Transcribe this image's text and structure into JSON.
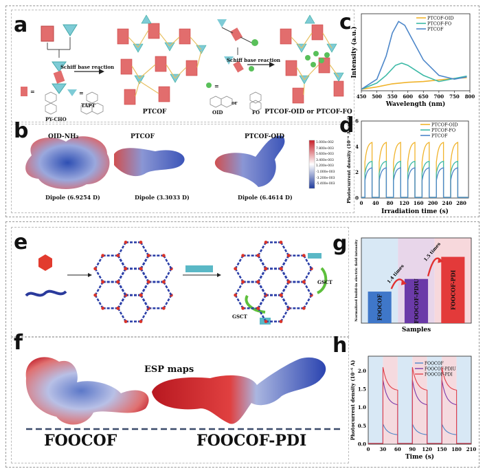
{
  "panels": {
    "a": "a",
    "b": "b",
    "c": "c",
    "d": "d",
    "e": "e",
    "f": "f",
    "g": "g",
    "h": "h"
  },
  "panel_a": {
    "schiff1": "Schiff base reaction",
    "schiff2": "Schiff base reaction",
    "py_cho": "PY-CHO",
    "tapt": "TAPT",
    "ptcof": "PTCOF",
    "oid": "OID",
    "or": "or",
    "fo": "FO",
    "result": "PTCOF-OID or PTCOF-FO"
  },
  "panel_b": {
    "t1": "OID-NH₂",
    "t2": "PTCOF",
    "t3": "PTCOF-OID",
    "d1": "Dipole (6.9254 D)",
    "d2": "Dipole (3.3033 D)",
    "d3": "Dipole (6.4614 D)",
    "scale": [
      "1.000e-002",
      "7.800e-003",
      "5.600e-003",
      "3.400e-003",
      "1.200e-003",
      "-1.000e-003",
      "-3.200e-003",
      "-5.400e-003",
      "-7.600e-003"
    ]
  },
  "panel_e": {
    "gsct1": "GSCT",
    "gsct2": "GSCT"
  },
  "panel_f": {
    "esp": "ESP maps",
    "left": "FOOCOF",
    "right": "FOOCOF-PDI"
  },
  "chart_data": [
    {
      "id": "c",
      "type": "line",
      "xlabel": "Wavelength (nm)",
      "ylabel": "Intensity (a.u.)",
      "xlim": [
        450,
        800
      ],
      "xticks": [
        450,
        500,
        550,
        600,
        650,
        700,
        750,
        800
      ],
      "series": [
        {
          "name": "PTCOF-OID",
          "color": "#f0b32a",
          "x": [
            450,
            500,
            550,
            600,
            650,
            700,
            750,
            790
          ],
          "y": [
            0.02,
            0.05,
            0.09,
            0.11,
            0.12,
            0.14,
            0.16,
            0.17
          ]
        },
        {
          "name": "PTCOF-FO",
          "color": "#3cb9a6",
          "x": [
            450,
            500,
            530,
            560,
            580,
            600,
            650,
            700,
            750,
            790
          ],
          "y": [
            0.02,
            0.1,
            0.2,
            0.33,
            0.36,
            0.33,
            0.2,
            0.12,
            0.16,
            0.19
          ]
        },
        {
          "name": "PTCOF",
          "color": "#4c86c9",
          "x": [
            450,
            500,
            530,
            550,
            570,
            590,
            610,
            650,
            700,
            750,
            790
          ],
          "y": [
            0.02,
            0.15,
            0.45,
            0.75,
            0.9,
            0.85,
            0.7,
            0.4,
            0.2,
            0.15,
            0.18
          ]
        }
      ],
      "legend": "top-right"
    },
    {
      "id": "d",
      "type": "line",
      "xlabel": "Irradiation time (s)",
      "ylabel": "Photocurrent density (10⁻⁶ A cm⁻²)",
      "xlim": [
        0,
        300
      ],
      "ylim": [
        0,
        6
      ],
      "xticks": [
        0,
        40,
        80,
        120,
        160,
        200,
        240,
        280
      ],
      "yticks": [
        0,
        2,
        4,
        6
      ],
      "period": 40,
      "on_start": 10,
      "on_duration": 20,
      "series": [
        {
          "name": "PTCOF-OID",
          "color": "#f0b32a",
          "peak": 4.4,
          "steady": 3.5
        },
        {
          "name": "PTCOF-FO",
          "color": "#3cb9a6",
          "peak": 2.9,
          "steady": 2.4
        },
        {
          "name": "PTCOF",
          "color": "#4c86c9",
          "peak": 2.4,
          "steady": 1.7
        }
      ],
      "legend": "top-right"
    },
    {
      "id": "g",
      "type": "bar",
      "xlabel": "Samples",
      "ylabel": "Normalized build-in electric field intensity",
      "categories": [
        "FOOCOF",
        "FOOCOF-PDIU",
        "FOOCOF-PDI"
      ],
      "values": [
        1.0,
        1.4,
        2.1
      ],
      "colors": [
        "#3f77c9",
        "#6b3aa8",
        "#e33a3a"
      ],
      "bg": [
        "#d8e8f5",
        "#e8d6ea",
        "#f7d8dc"
      ],
      "annotations": [
        "1.4 times",
        "1.5 times"
      ],
      "ylim": [
        0,
        2.7
      ]
    },
    {
      "id": "h",
      "type": "line",
      "xlabel": "Time (s)",
      "ylabel": "Photocurrent density (10⁻⁶ A)",
      "xlim": [
        0,
        210
      ],
      "ylim": [
        0,
        2.4
      ],
      "xticks": [
        0,
        30,
        60,
        90,
        120,
        150,
        180,
        210
      ],
      "yticks": [
        0.0,
        0.5,
        1.0,
        1.5,
        2.0
      ],
      "on_intervals": [
        [
          30,
          60
        ],
        [
          90,
          120
        ],
        [
          150,
          180
        ]
      ],
      "series": [
        {
          "name": "FOOCOF",
          "color": "#4c86c9",
          "peak": 0.55,
          "steady": 0.25
        },
        {
          "name": "FOOCOF-PDIU",
          "color": "#7a3aa8",
          "peak": 1.75,
          "steady": 1.05
        },
        {
          "name": "FOOCOF-PDI",
          "color": "#e0404a",
          "peak": 2.1,
          "steady": 1.45
        }
      ],
      "legend": "top-right"
    }
  ]
}
